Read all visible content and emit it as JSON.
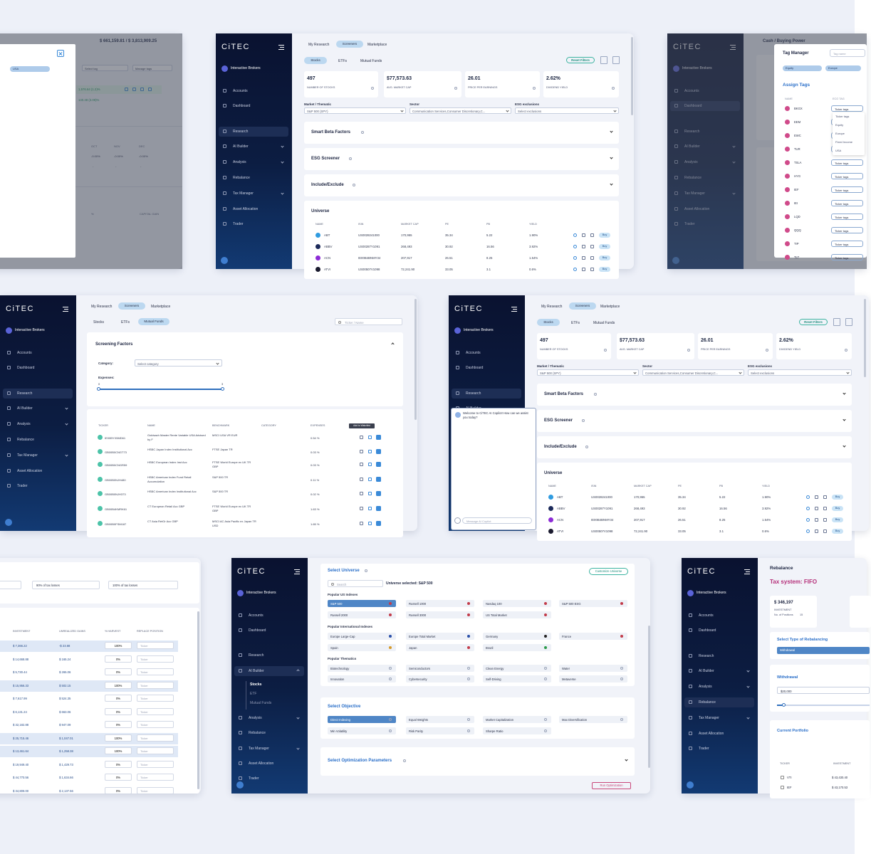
{
  "sidebar": {
    "logo": "CiTEC",
    "broker": "Interactive Brokers",
    "menu": [
      "Accounts",
      "Dashboard",
      "Research",
      "AI Builder",
      "Analysis",
      "Rebalance",
      "Tax Manager",
      "Asset Allocation",
      "Trader"
    ],
    "ai_builder_sub": [
      "Stocks",
      "ETF",
      "Mutual Funds"
    ]
  },
  "portfolio_view": {
    "balance": "$ 661,159.81 / $ 3,813,909.25",
    "chip": "USA",
    "select_tag": "Select tag",
    "manage_tags": "Manage tags",
    "gain": "1,576.64 (1.2)%",
    "gain2": "140.48 (3.09)%",
    "months": [
      "OCT",
      "NOV",
      "DEC"
    ],
    "month_values": [
      "-0.00%",
      "-0.00%",
      "-0.00%"
    ],
    "dashes": [
      "-",
      "-",
      "-"
    ],
    "columns": [
      "%",
      "CAPITAL GAIN"
    ]
  },
  "screener": {
    "tabs": [
      "My Research",
      "Screeners",
      "Marketplace"
    ],
    "subtabs": [
      "Stocks",
      "ETFs",
      "Mutual Funds"
    ],
    "reset": "Reset Filters",
    "stats": [
      {
        "value": "497",
        "label": "NUMBER OF STOCKS"
      },
      {
        "value": "$77,573.63",
        "label": "AVG. MARKET CAP"
      },
      {
        "value": "26.01",
        "label": "PRICE PER EARNINGS"
      },
      {
        "value": "2.62%",
        "label": "DIVIDEND YIELD"
      }
    ],
    "filters": [
      {
        "label": "Market / Thematic",
        "value": "S&P 500 (SPY)"
      },
      {
        "label": "Sector",
        "value": "Communication Services,Consumer Discretionary,C..."
      },
      {
        "label": "ESG exclusions",
        "value": "Select exclusions"
      }
    ],
    "sections": [
      "Smart Beta Factors",
      "ESG Screener",
      "Include/Exclude"
    ],
    "universe": {
      "title": "Universe",
      "columns": [
        "NAME",
        "ISIN",
        "MARKET CAP",
        "PE",
        "PB",
        "YIELD"
      ],
      "rows": [
        [
          "ABT",
          "US0028241000",
          "170,955",
          "35.34",
          "5.22",
          "1.90%"
        ],
        [
          "ABBV",
          "US00287Y1091",
          "268,493",
          "30.92",
          "16.56",
          "3.92%"
        ],
        [
          "ACN",
          "IE00B4BNMY34",
          "207,917",
          "26.51",
          "8.25",
          "1.54%"
        ],
        [
          "ATVI",
          "US00507V1098",
          "72,241.90",
          "33.05",
          "3.1",
          "0.6%"
        ]
      ],
      "buy": "Buy"
    }
  },
  "tag_manager": {
    "background_title": "Cash / Buying Power",
    "title": "Tag Manager",
    "tag_name": "Tag name",
    "chips": [
      "Equity",
      "Europe"
    ],
    "assign": "Assign Tags",
    "columns": [
      "NAME",
      "ECO TAG"
    ],
    "tickers": [
      "BKGX",
      "EEM",
      "EWC",
      "TUR",
      "TSLA",
      "HYG",
      "IEF",
      "IEI",
      "LQD",
      "QQQ",
      "TIP",
      "TLT"
    ],
    "select": "Ticker tags",
    "options": [
      "Ticker tags",
      "Equity",
      "Europe",
      "Fixed Income",
      "USA"
    ]
  },
  "mutual_funds": {
    "search": "Ticker / Name",
    "panel_title": "Screening Factors",
    "category_label": "Category:",
    "category_select": "Select category",
    "expenses_label": "Expenses:",
    "range": [
      "0",
      "3"
    ],
    "columns": [
      "TICKER",
      "NAME",
      "BENCHMARK",
      "CATEGORY",
      "EXPENSES"
    ],
    "tooltip": "Add to Watchlist",
    "rows": [
      {
        "ticker": "IE00BYX5MD61",
        "name": "Goldsach Master Rente Variable USA Advised by F",
        "benchmark": "MSCI USA VR EUR",
        "expenses": "0.54 %"
      },
      {
        "ticker": "GB00B0CNGT73",
        "name": "HSBC Japan Index Institutional Acc",
        "benchmark": "FTSE Japan TR",
        "expenses": "0.03 %"
      },
      {
        "ticker": "GB00B0CNGR59",
        "name": "HSBC European Index Inst Acc",
        "benchmark": "FTSE World Europe ex UK TR GBP",
        "expenses": "0.03 %"
      },
      {
        "ticker": "GB00B0NJH480",
        "name": "HSBC American Index Fund Retail Accumulation",
        "benchmark": "S&P 500 TR",
        "expenses": "0.11 %"
      },
      {
        "ticker": "GB00B0NJH373",
        "name": "HSBC American Index Institutional Acc",
        "benchmark": "S&P 500 TR",
        "expenses": "0.02 %"
      },
      {
        "ticker": "GB00B4KMRK61",
        "name": "CT European Retail Acc GBP",
        "benchmark": "FTSE World Europe ex UK TR GBP",
        "expenses": "1.63 %"
      },
      {
        "ticker": "GB00B0FSM187",
        "name": "CT Asia RetGr Acc GBP",
        "benchmark": "MSCI AC Asia Pacific ex Japan TR USD",
        "expenses": "1.65 %"
      }
    ]
  },
  "copilot": {
    "welcome": "Welcome to CiTEC AI Copilot! How can we assist you today?",
    "placeholder": "Message AI Copilot"
  },
  "tax_harvest": {
    "options": [
      "90% of tax losses",
      "100% of tax losses"
    ],
    "columns": [
      "INVESTMENT",
      "UNREALIZED GAINS",
      "% HARVEST",
      "REPLACE POSITION"
    ],
    "placeholder": "Ticker",
    "rows": [
      [
        "$ 7,366.22",
        "-$ 23.68",
        "100%"
      ],
      [
        "$ 14,668.88",
        "$ 165.24",
        "0%"
      ],
      [
        "$ 5,730.44",
        "$ 265.06",
        "0%"
      ],
      [
        "$ 15,956.33",
        "$ 502.15",
        "100%"
      ],
      [
        "$ 7,617.99",
        "$ 524.35",
        "0%"
      ],
      [
        "$ 6,131.24",
        "$ 663.06",
        "0%"
      ],
      [
        "$ 32,182.88",
        "$ 947.09",
        "0%"
      ],
      [
        "$ 25,715.46",
        "$ 1,047.01",
        "100%"
      ],
      [
        "$ 13,461.64",
        "$ 1,258.38",
        "100%"
      ],
      [
        "$ 19,949.40",
        "$ 1,429.73",
        "0%"
      ],
      [
        "$ 44,770.56",
        "$ 1,634.66",
        "0%"
      ],
      [
        "$ 34,809.00",
        "$ 2,137.56",
        "0%"
      ]
    ]
  },
  "ai_builder": {
    "universe_title": "Select Universe",
    "customize": "Customize Universe",
    "search": "Search",
    "selected": "Universe selected: S&P 500",
    "groups": [
      {
        "title": "Popular US Indexes",
        "items": [
          "S&P 500",
          "Russell 1000",
          "Nasdaq 100",
          "S&P 500 ESG",
          "Russell 2000",
          "Russell 3000",
          "US Total Market"
        ]
      },
      {
        "title": "Popular International Indexes",
        "items": [
          "Europe Large-Cap",
          "Europe Total Market",
          "Germany",
          "France",
          "Spain",
          "Japan",
          "Brazil"
        ]
      },
      {
        "title": "Popular Thematics",
        "items": [
          "Biotechnology",
          "Semiconductors",
          "Clean Energy",
          "Water",
          "Innovation",
          "Cybersecurity",
          "Self-Driving",
          "Metaverse"
        ]
      }
    ],
    "objective_title": "Select Objective",
    "objectives": [
      "Direct Indexing",
      "Equal Weights",
      "Market Capitalization",
      "Max Diversification",
      "Min Volatility",
      "Risk Parity",
      "Sharpe Ratio"
    ],
    "optimization_title": "Select Optimization Parameters",
    "run": "Run Optimization"
  },
  "rebalance": {
    "title": "Rebalance",
    "tax_system": "Tax system: FIFO",
    "investment": "$ 346,197",
    "investment_label": "INVESTMENT",
    "positions_label": "No. of Positions",
    "positions": "15",
    "type_title": "Select Type of Rebalancing",
    "type_value": "Withdrawal",
    "withdrawal_title": "Withdrawal",
    "withdrawal_value": "$20,000",
    "portfolio_title": "Current Portfolio",
    "columns": [
      "TICKER",
      "INVESTMENT"
    ],
    "rows": [
      [
        "VTI",
        "$ 43,430.40"
      ],
      [
        "IEF",
        "$ 43,170.53"
      ]
    ]
  }
}
